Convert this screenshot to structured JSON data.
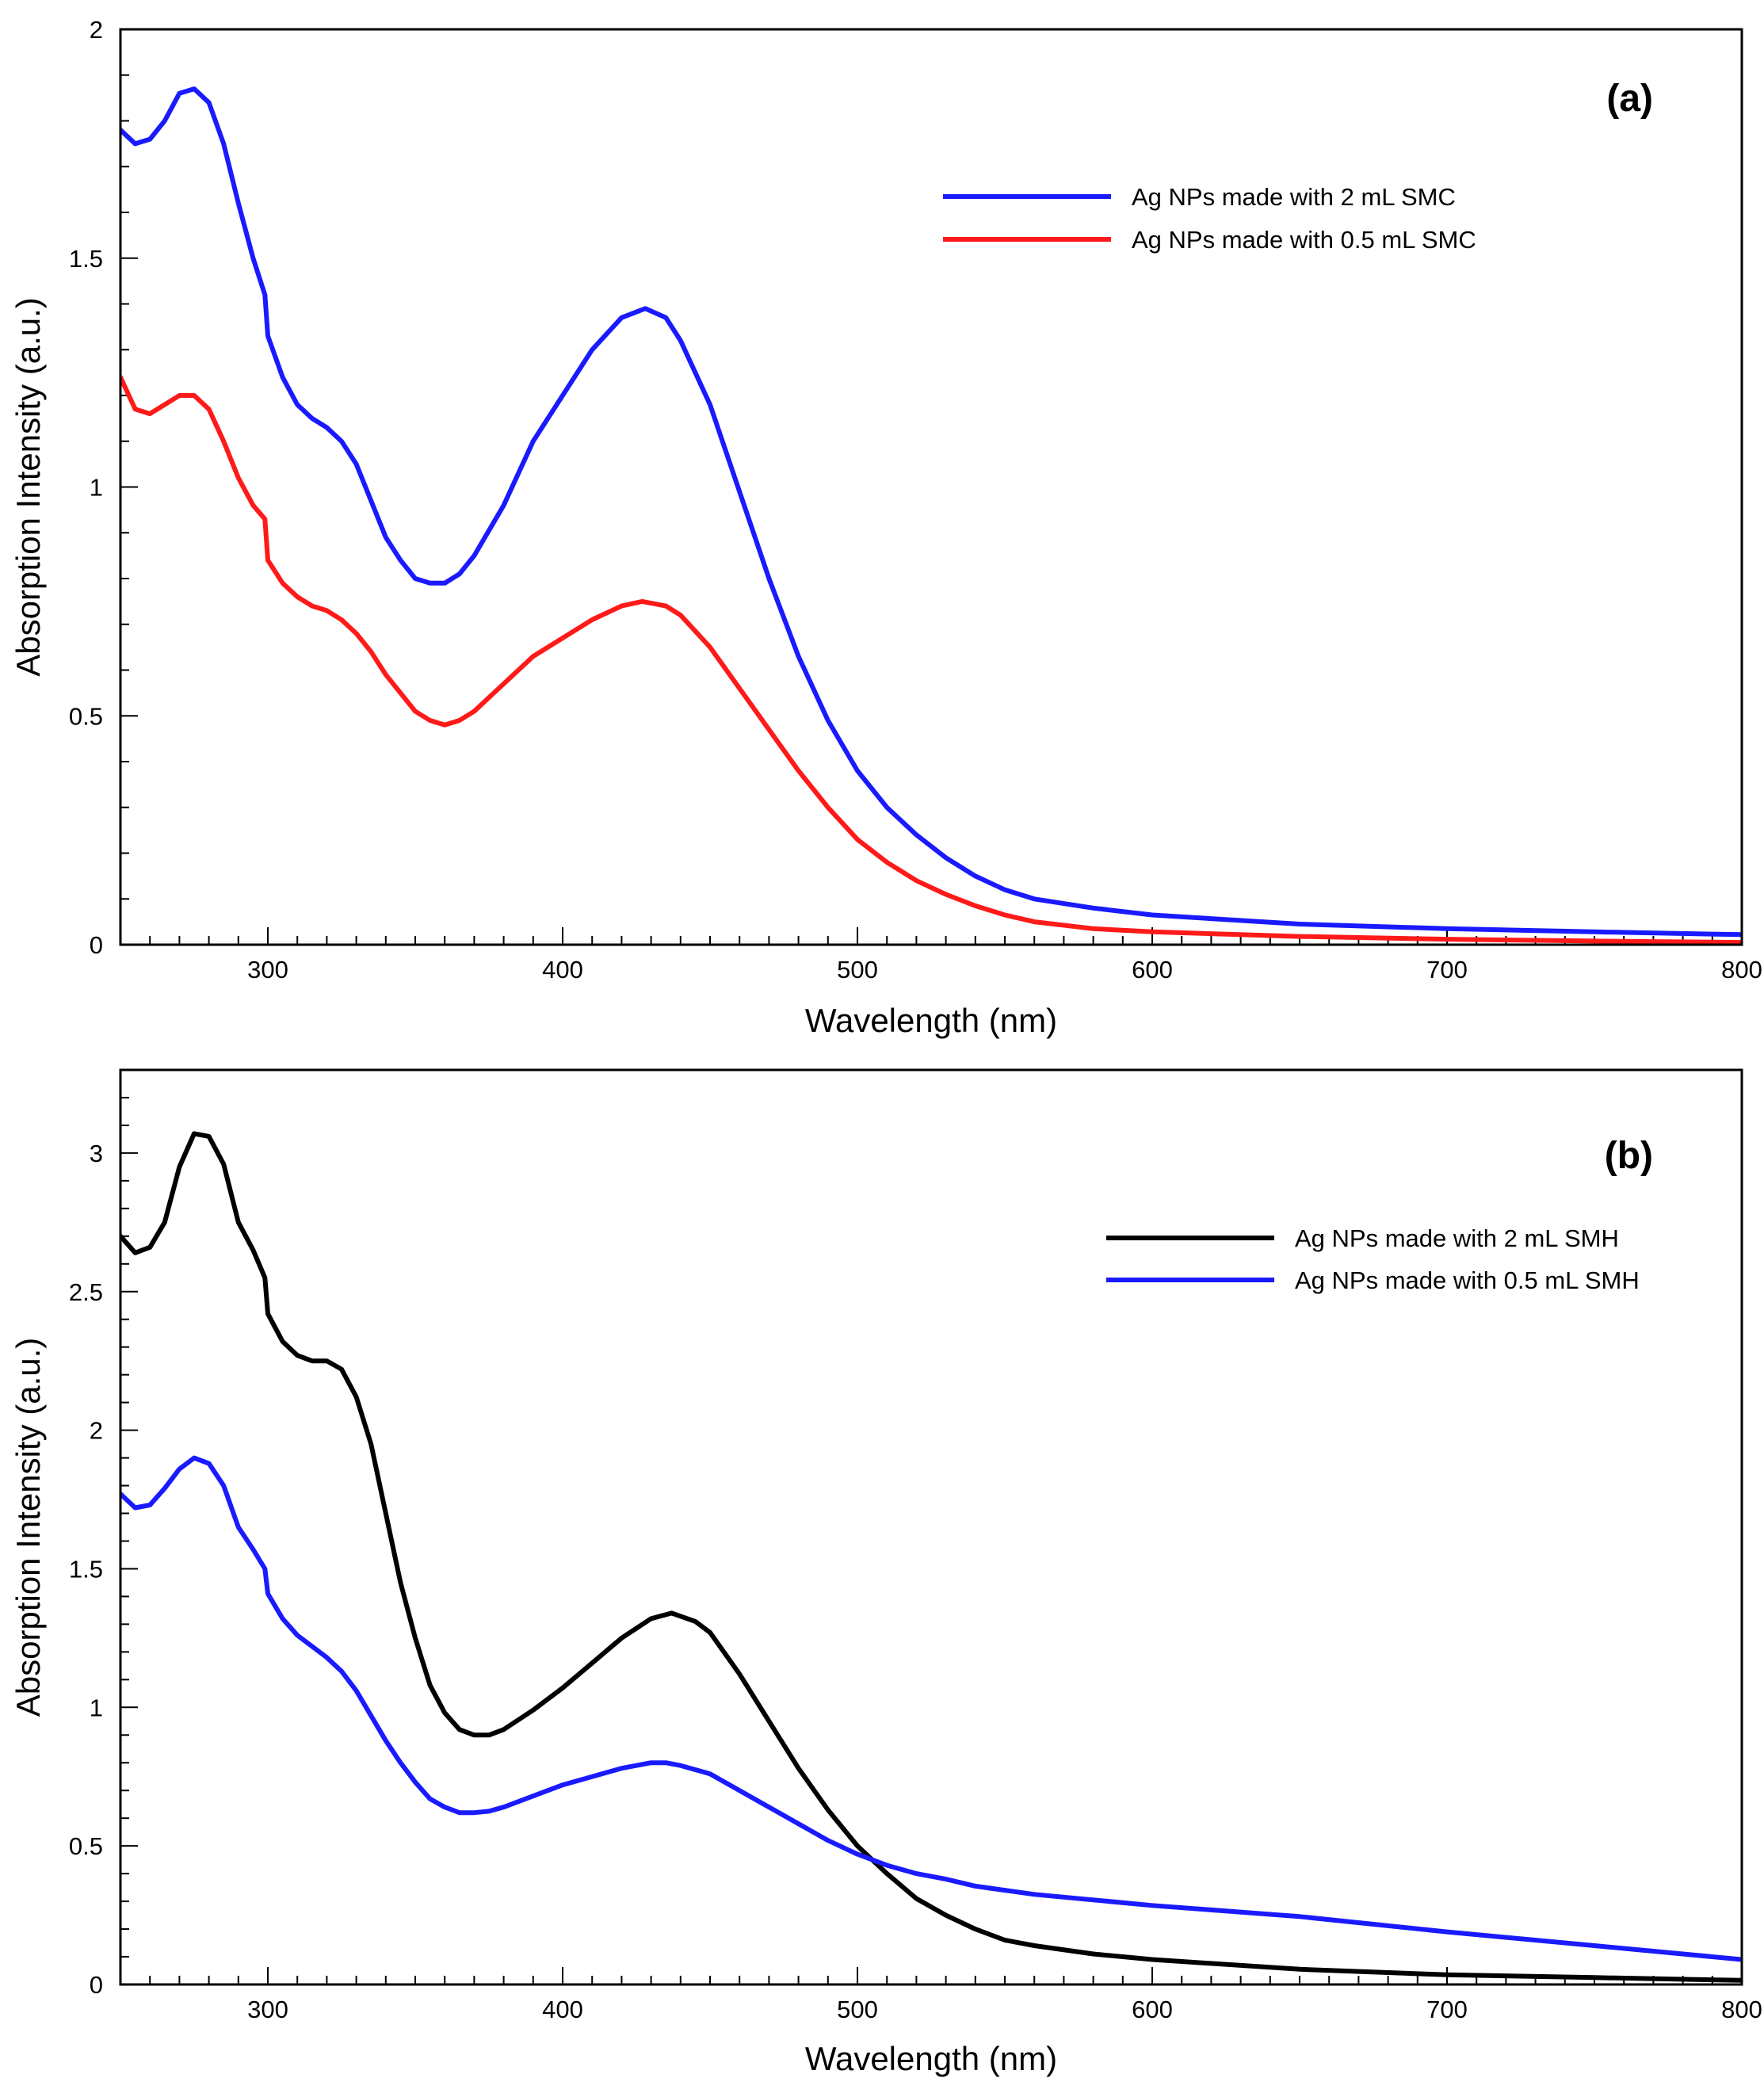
{
  "chart_data": [
    {
      "type": "line",
      "panel_label": "(a)",
      "xlabel": "Wavelength (nm)",
      "ylabel": "Absorption Intensity (a.u.)",
      "xlim": [
        250,
        800
      ],
      "ylim": [
        0,
        2
      ],
      "xticks": [
        300,
        400,
        500,
        600,
        700,
        800
      ],
      "xtick_labels": [
        "300",
        "400",
        "500",
        "600",
        "700",
        "800"
      ],
      "yticks": [
        0,
        0.5,
        1,
        1.5,
        2
      ],
      "ytick_labels": [
        "0",
        "0.5",
        "1",
        "1.5",
        "2"
      ],
      "x_minor_step": 10,
      "y_minor_step": 0.1,
      "legend_position": "top-right",
      "series": [
        {
          "name": "Ag NPs made with 2 mL SMC",
          "color": "#1a1aff",
          "points": [
            [
              250,
              1.78
            ],
            [
              255,
              1.75
            ],
            [
              260,
              1.76
            ],
            [
              265,
              1.8
            ],
            [
              270,
              1.86
            ],
            [
              275,
              1.87
            ],
            [
              280,
              1.84
            ],
            [
              285,
              1.75
            ],
            [
              290,
              1.62
            ],
            [
              295,
              1.5
            ],
            [
              299,
              1.42
            ],
            [
              300,
              1.33
            ],
            [
              305,
              1.24
            ],
            [
              310,
              1.18
            ],
            [
              315,
              1.15
            ],
            [
              320,
              1.13
            ],
            [
              325,
              1.1
            ],
            [
              330,
              1.05
            ],
            [
              335,
              0.97
            ],
            [
              340,
              0.89
            ],
            [
              345,
              0.84
            ],
            [
              350,
              0.8
            ],
            [
              355,
              0.79
            ],
            [
              360,
              0.79
            ],
            [
              365,
              0.81
            ],
            [
              370,
              0.85
            ],
            [
              380,
              0.96
            ],
            [
              390,
              1.1
            ],
            [
              400,
              1.2
            ],
            [
              410,
              1.3
            ],
            [
              420,
              1.37
            ],
            [
              428,
              1.39
            ],
            [
              435,
              1.37
            ],
            [
              440,
              1.32
            ],
            [
              450,
              1.18
            ],
            [
              460,
              0.99
            ],
            [
              470,
              0.8
            ],
            [
              480,
              0.63
            ],
            [
              490,
              0.49
            ],
            [
              500,
              0.38
            ],
            [
              510,
              0.3
            ],
            [
              520,
              0.24
            ],
            [
              530,
              0.19
            ],
            [
              540,
              0.15
            ],
            [
              550,
              0.12
            ],
            [
              560,
              0.1
            ],
            [
              580,
              0.08
            ],
            [
              600,
              0.065
            ],
            [
              650,
              0.045
            ],
            [
              700,
              0.035
            ],
            [
              750,
              0.028
            ],
            [
              800,
              0.022
            ]
          ]
        },
        {
          "name": "Ag NPs made with 0.5 mL SMC",
          "color": "#ff1a1a",
          "points": [
            [
              250,
              1.24
            ],
            [
              255,
              1.17
            ],
            [
              260,
              1.16
            ],
            [
              265,
              1.18
            ],
            [
              270,
              1.2
            ],
            [
              275,
              1.2
            ],
            [
              280,
              1.17
            ],
            [
              285,
              1.1
            ],
            [
              290,
              1.02
            ],
            [
              295,
              0.96
            ],
            [
              299,
              0.93
            ],
            [
              300,
              0.84
            ],
            [
              305,
              0.79
            ],
            [
              310,
              0.76
            ],
            [
              315,
              0.74
            ],
            [
              320,
              0.73
            ],
            [
              325,
              0.71
            ],
            [
              330,
              0.68
            ],
            [
              335,
              0.64
            ],
            [
              340,
              0.59
            ],
            [
              345,
              0.55
            ],
            [
              350,
              0.51
            ],
            [
              355,
              0.49
            ],
            [
              360,
              0.48
            ],
            [
              365,
              0.49
            ],
            [
              370,
              0.51
            ],
            [
              380,
              0.57
            ],
            [
              390,
              0.63
            ],
            [
              400,
              0.67
            ],
            [
              410,
              0.71
            ],
            [
              420,
              0.74
            ],
            [
              427,
              0.75
            ],
            [
              435,
              0.74
            ],
            [
              440,
              0.72
            ],
            [
              450,
              0.65
            ],
            [
              460,
              0.56
            ],
            [
              470,
              0.47
            ],
            [
              480,
              0.38
            ],
            [
              490,
              0.3
            ],
            [
              500,
              0.23
            ],
            [
              510,
              0.18
            ],
            [
              520,
              0.14
            ],
            [
              530,
              0.11
            ],
            [
              540,
              0.085
            ],
            [
              550,
              0.065
            ],
            [
              560,
              0.05
            ],
            [
              580,
              0.035
            ],
            [
              600,
              0.028
            ],
            [
              650,
              0.018
            ],
            [
              700,
              0.012
            ],
            [
              750,
              0.008
            ],
            [
              800,
              0.005
            ]
          ]
        }
      ]
    },
    {
      "type": "line",
      "panel_label": "(b)",
      "xlabel": "Wavelength (nm)",
      "ylabel": "Absorption Intensity (a.u.)",
      "xlim": [
        250,
        800
      ],
      "ylim": [
        0,
        3.3
      ],
      "xticks": [
        300,
        400,
        500,
        600,
        700,
        800
      ],
      "xtick_labels": [
        "300",
        "400",
        "500",
        "600",
        "700",
        "800"
      ],
      "yticks": [
        0,
        0.5,
        1,
        1.5,
        2,
        2.5,
        3
      ],
      "ytick_labels": [
        "0",
        "0.5",
        "1",
        "1.5",
        "2",
        "2.5",
        "3"
      ],
      "x_minor_step": 10,
      "y_minor_step": 0.1,
      "legend_position": "top-right",
      "series": [
        {
          "name": "Ag NPs made with 2 mL SMH",
          "color": "#000000",
          "points": [
            [
              250,
              2.7
            ],
            [
              255,
              2.64
            ],
            [
              260,
              2.66
            ],
            [
              265,
              2.75
            ],
            [
              270,
              2.95
            ],
            [
              275,
              3.07
            ],
            [
              280,
              3.06
            ],
            [
              285,
              2.96
            ],
            [
              290,
              2.75
            ],
            [
              295,
              2.65
            ],
            [
              299,
              2.55
            ],
            [
              300,
              2.42
            ],
            [
              305,
              2.32
            ],
            [
              310,
              2.27
            ],
            [
              315,
              2.25
            ],
            [
              320,
              2.25
            ],
            [
              325,
              2.22
            ],
            [
              330,
              2.12
            ],
            [
              335,
              1.95
            ],
            [
              340,
              1.7
            ],
            [
              345,
              1.45
            ],
            [
              350,
              1.25
            ],
            [
              355,
              1.08
            ],
            [
              360,
              0.98
            ],
            [
              365,
              0.92
            ],
            [
              370,
              0.9
            ],
            [
              375,
              0.9
            ],
            [
              380,
              0.92
            ],
            [
              390,
              0.99
            ],
            [
              400,
              1.07
            ],
            [
              410,
              1.16
            ],
            [
              420,
              1.25
            ],
            [
              430,
              1.32
            ],
            [
              437,
              1.34
            ],
            [
              445,
              1.31
            ],
            [
              450,
              1.27
            ],
            [
              460,
              1.12
            ],
            [
              470,
              0.95
            ],
            [
              480,
              0.78
            ],
            [
              490,
              0.63
            ],
            [
              500,
              0.5
            ],
            [
              510,
              0.4
            ],
            [
              520,
              0.31
            ],
            [
              530,
              0.25
            ],
            [
              540,
              0.2
            ],
            [
              550,
              0.16
            ],
            [
              560,
              0.14
            ],
            [
              580,
              0.11
            ],
            [
              600,
              0.09
            ],
            [
              650,
              0.055
            ],
            [
              700,
              0.035
            ],
            [
              750,
              0.025
            ],
            [
              800,
              0.015
            ]
          ]
        },
        {
          "name": "Ag NPs made with 0.5 mL SMH",
          "color": "#1a1aff",
          "points": [
            [
              250,
              1.77
            ],
            [
              255,
              1.72
            ],
            [
              260,
              1.73
            ],
            [
              265,
              1.79
            ],
            [
              270,
              1.86
            ],
            [
              275,
              1.9
            ],
            [
              280,
              1.88
            ],
            [
              285,
              1.8
            ],
            [
              290,
              1.65
            ],
            [
              295,
              1.57
            ],
            [
              299,
              1.5
            ],
            [
              300,
              1.41
            ],
            [
              305,
              1.32
            ],
            [
              310,
              1.26
            ],
            [
              315,
              1.22
            ],
            [
              320,
              1.18
            ],
            [
              325,
              1.13
            ],
            [
              330,
              1.06
            ],
            [
              335,
              0.97
            ],
            [
              340,
              0.88
            ],
            [
              345,
              0.8
            ],
            [
              350,
              0.73
            ],
            [
              355,
              0.67
            ],
            [
              360,
              0.64
            ],
            [
              365,
              0.62
            ],
            [
              370,
              0.62
            ],
            [
              375,
              0.625
            ],
            [
              380,
              0.64
            ],
            [
              390,
              0.68
            ],
            [
              400,
              0.72
            ],
            [
              410,
              0.75
            ],
            [
              420,
              0.78
            ],
            [
              430,
              0.8
            ],
            [
              435,
              0.8
            ],
            [
              440,
              0.79
            ],
            [
              450,
              0.76
            ],
            [
              460,
              0.7
            ],
            [
              470,
              0.64
            ],
            [
              480,
              0.58
            ],
            [
              490,
              0.52
            ],
            [
              500,
              0.47
            ],
            [
              510,
              0.43
            ],
            [
              520,
              0.4
            ],
            [
              530,
              0.38
            ],
            [
              540,
              0.355
            ],
            [
              550,
              0.34
            ],
            [
              560,
              0.325
            ],
            [
              580,
              0.305
            ],
            [
              600,
              0.285
            ],
            [
              650,
              0.245
            ],
            [
              700,
              0.19
            ],
            [
              750,
              0.14
            ],
            [
              800,
              0.09
            ]
          ]
        }
      ]
    }
  ]
}
